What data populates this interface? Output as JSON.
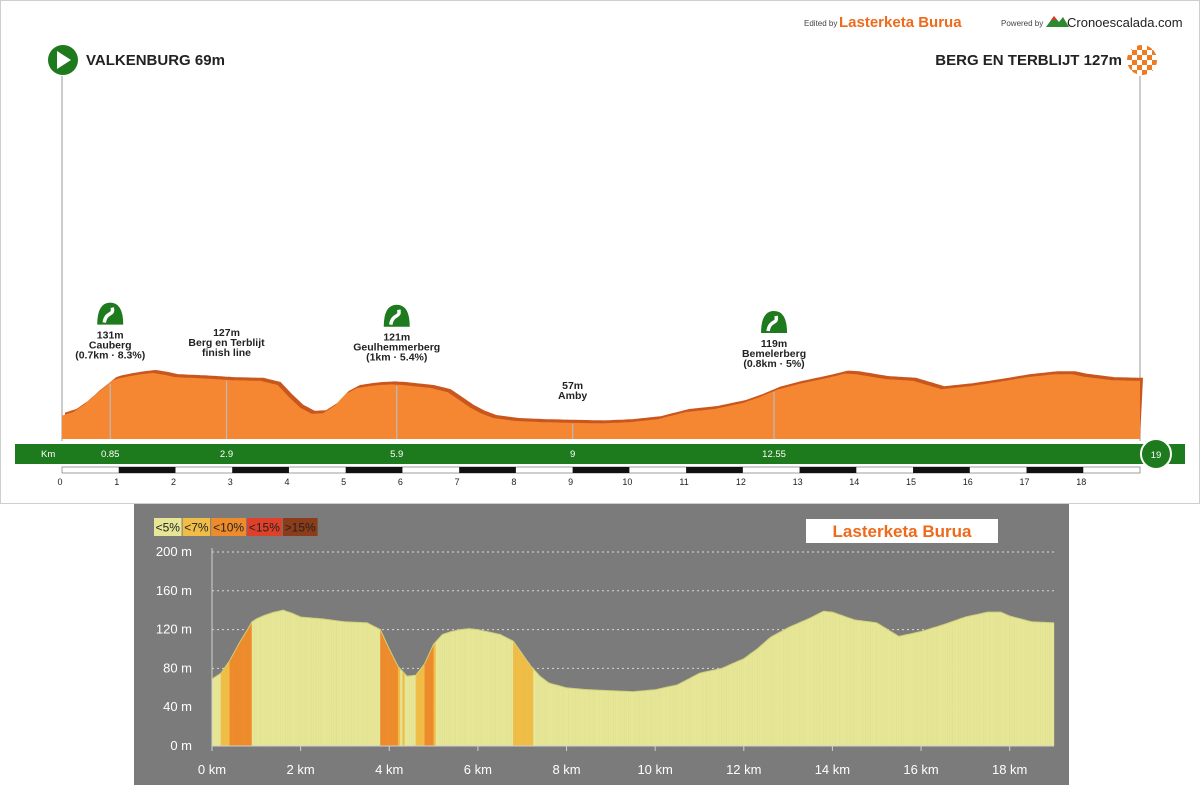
{
  "header": {
    "edited_by_label": "Edited by",
    "editor_brand": "Lasterketa Burua",
    "powered_by_label": "Powered by",
    "powered_brand": "Cronoescalada.com"
  },
  "start": {
    "label": "VALKENBURG 69m"
  },
  "finish": {
    "label": "BERG EN TERBLIJT 127m"
  },
  "colors": {
    "profile_orange": "#f58632",
    "profile_dark": "#c9561d",
    "km_bar_green": "#1d7a1d",
    "lasterketa_orange": "#ee6a1c"
  },
  "points": [
    {
      "km": 0.85,
      "alt": "131m",
      "name": "Cauberg",
      "detail": "(0.7km · 8.3%)",
      "climb": true
    },
    {
      "km": 2.9,
      "alt": "127m",
      "name": "Berg en Terblijt",
      "detail": "finish line",
      "climb": false
    },
    {
      "km": 5.9,
      "alt": "121m",
      "name": "Geulhemmerberg",
      "detail": "(1km · 5.4%)",
      "climb": true
    },
    {
      "km": 9,
      "alt": "57m",
      "name": "Amby",
      "detail": "",
      "climb": false
    },
    {
      "km": 12.55,
      "alt": "119m",
      "name": "Bemelerberg",
      "detail": "(0.8km · 5%)",
      "climb": true
    }
  ],
  "km_bar": {
    "label": "Km",
    "marks": [
      "0.85",
      "2.9",
      "5.9",
      "9",
      "12.55"
    ],
    "end": "19"
  },
  "km_ticks": [
    "0",
    "1",
    "2",
    "3",
    "4",
    "5",
    "6",
    "7",
    "8",
    "9",
    "10",
    "11",
    "12",
    "13",
    "14",
    "15",
    "16",
    "17",
    "18"
  ],
  "chart_data": {
    "type": "area",
    "xlabel": "",
    "ylabel": "",
    "x_unit": "km",
    "y_unit": "m",
    "xlim": [
      0,
      19
    ],
    "ylim": [
      0,
      200
    ],
    "x_ticks": [
      "0 km",
      "2 km",
      "4 km",
      "6 km",
      "8 km",
      "10 km",
      "12 km",
      "14 km",
      "16 km",
      "18 km"
    ],
    "y_ticks": [
      "0 m",
      "40 m",
      "80 m",
      "120 m",
      "160 m",
      "200 m"
    ],
    "grid": true,
    "legend": [
      "<5%",
      "<7%",
      "<10%",
      "<15%",
      ">15%"
    ],
    "legend_colors": [
      "#e6e696",
      "#f0be46",
      "#ee8c2c",
      "#e0402a",
      "#8c3c18"
    ],
    "logo": "Lasterketa Burua",
    "series": [
      {
        "x": [
          0,
          0.2,
          0.4,
          0.6,
          0.8,
          0.9,
          1.0,
          1.2,
          1.4,
          1.6,
          1.8,
          2.0,
          2.5,
          3.0,
          3.5,
          3.8,
          4.0,
          4.2,
          4.4,
          4.6,
          4.8,
          5.0,
          5.2,
          5.4,
          5.6,
          5.8,
          6.0,
          6.2,
          6.5,
          6.8,
          7.0,
          7.2,
          7.4,
          7.6,
          8.0,
          8.5,
          9.0,
          9.5,
          10.0,
          10.5,
          11.0,
          11.5,
          12.0,
          12.3,
          12.6,
          13.0,
          13.5,
          13.8,
          14.0,
          14.5,
          15.0,
          15.5,
          16.0,
          16.5,
          17.0,
          17.5,
          17.8,
          18.0,
          18.5,
          19.0
        ],
        "y": [
          69,
          75,
          88,
          105,
          120,
          128,
          131,
          135,
          138,
          140,
          137,
          133,
          131,
          128,
          127,
          120,
          100,
          82,
          72,
          73,
          85,
          105,
          115,
          118,
          120,
          121,
          120,
          118,
          115,
          108,
          95,
          82,
          72,
          65,
          60,
          58,
          57,
          56,
          58,
          63,
          75,
          80,
          90,
          100,
          112,
          122,
          132,
          139,
          138,
          130,
          127,
          113,
          118,
          125,
          133,
          138,
          138,
          134,
          128,
          127
        ]
      }
    ]
  }
}
